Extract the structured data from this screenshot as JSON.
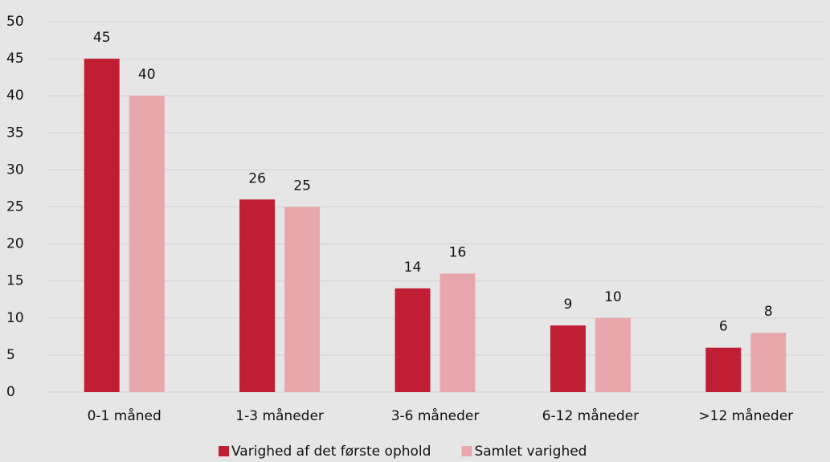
{
  "chart_data": {
    "type": "bar",
    "categories": [
      "0-1 måned",
      "1-3 måneder",
      "3-6 måneder",
      "6-12 måneder",
      ">12 måneder"
    ],
    "series": [
      {
        "name": "Varighed af det første ophold",
        "color": "#c01e32",
        "values": [
          45,
          26,
          14,
          9,
          6
        ]
      },
      {
        "name": "Samlet varighed",
        "color": "#e8a7ad",
        "values": [
          40,
          25,
          16,
          10,
          8
        ]
      }
    ],
    "ylim": [
      0,
      50
    ],
    "yticks": [
      0,
      5,
      10,
      15,
      20,
      25,
      30,
      35,
      40,
      45,
      50
    ],
    "grid": true,
    "legend": "bottom"
  }
}
